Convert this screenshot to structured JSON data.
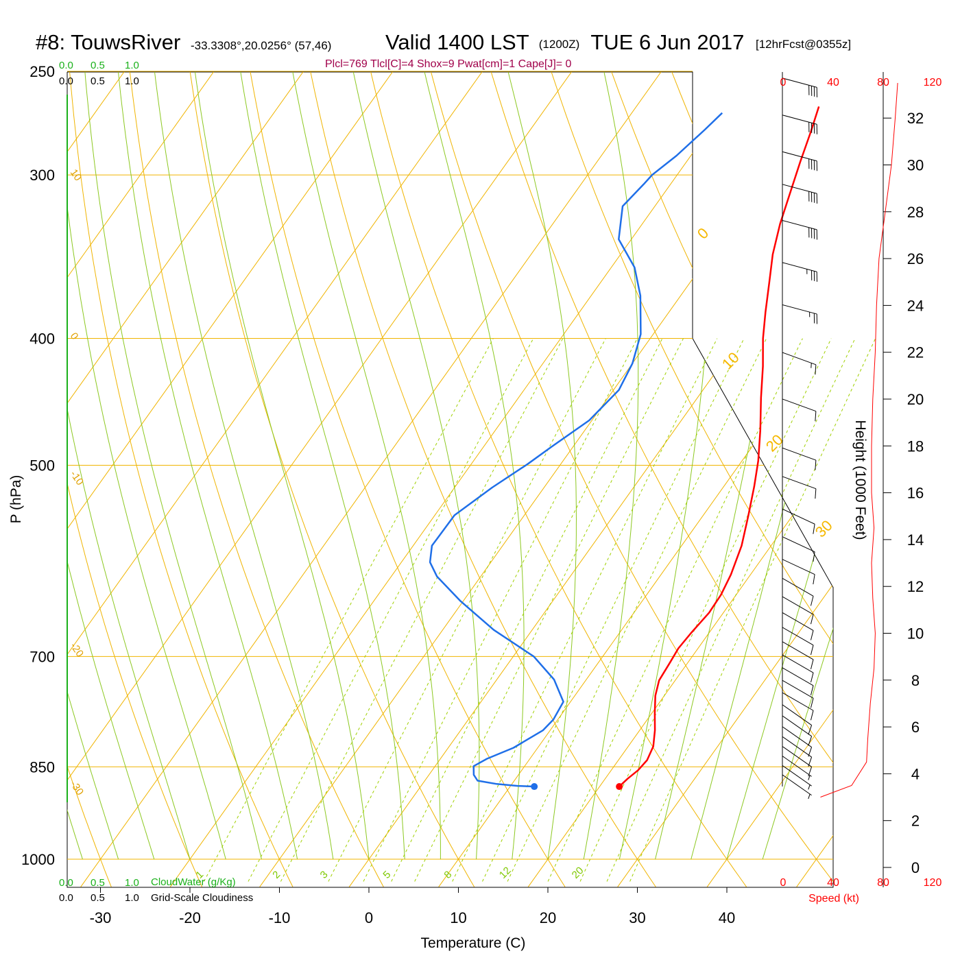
{
  "header": {
    "station": "#8: TouwsRiver",
    "coords": "-33.3308°,20.0256° (57,46)",
    "valid": "Valid 1400 LST",
    "zulu": "(1200Z)",
    "date": "TUE 6 Jun 2017",
    "forecast": "[12hrFcst@0355z]"
  },
  "stats_line": "Plcl=769 Tlcl[C]=4 Shox=9 Pwat[cm]=1 Cape[J]= 0",
  "scale_top_green": [
    "0.0",
    "0.5",
    "1.0"
  ],
  "scale_top_black": [
    "0.0",
    "0.5",
    "1.0"
  ],
  "scale_bottom_green": [
    "0.0",
    "0.5",
    "1.0"
  ],
  "scale_bottom_black": [
    "0.0",
    "0.5",
    "1.0"
  ],
  "cloudwater_label": "CloudWater (g/Kg)",
  "cloudiness_label": "Grid-Scale Cloudiness",
  "speed_ticks_top": [
    "0",
    "40",
    "80",
    "120"
  ],
  "speed_ticks_bottom": [
    "0",
    "40",
    "80",
    "120"
  ],
  "speed_label": "Speed (kt)",
  "colors": {
    "temperature": "#ff0000",
    "dewpoint": "#1f6fe8",
    "isotherm": "#f0b400",
    "dry_adiabat": "#f0b400",
    "moist_adiabat": "#8cc820",
    "mixing_ratio": "#a0d000",
    "speed_profile": "#ff0000",
    "cloud_axis": "#19b019"
  },
  "chart_data": {
    "type": "line",
    "subtype": "skew-t log-p sounding",
    "xlabel": "Temperature (C)",
    "ylabel": "P (hPa)",
    "y2label": "Height (1000 Feet)",
    "x_ticks": [
      -30,
      -20,
      -10,
      0,
      10,
      20,
      30,
      40
    ],
    "pressure_ticks": [
      250,
      300,
      400,
      500,
      700,
      850,
      1000
    ],
    "height_ticks": [
      0,
      2,
      4,
      6,
      8,
      10,
      12,
      14,
      16,
      18,
      20,
      22,
      24,
      26,
      28,
      30,
      32
    ],
    "isotherm_labels": [
      {
        "text": "0",
        "t": 0
      },
      {
        "text": "10",
        "t": 10
      },
      {
        "text": "20",
        "t": 20
      },
      {
        "text": "30",
        "t": 30
      }
    ],
    "dry_adiabat_labels": [
      {
        "text": "10",
        "p": 300
      },
      {
        "text": "0",
        "p": 400
      },
      {
        "text": "-10",
        "p": 510
      },
      {
        "text": "-20",
        "p": 690
      },
      {
        "text": "-30",
        "p": 880
      }
    ],
    "mixing_ratio_labels": [
      "1",
      "2",
      "3",
      "5",
      "8",
      "12",
      "20"
    ],
    "series": [
      {
        "name": "Temperature",
        "points": [
          [
            22.2,
            880
          ],
          [
            22.5,
            868
          ],
          [
            23.0,
            855
          ],
          [
            23.2,
            840
          ],
          [
            22.8,
            820
          ],
          [
            21.7,
            797
          ],
          [
            20.3,
            773
          ],
          [
            19.0,
            750
          ],
          [
            18.2,
            730
          ],
          [
            18.0,
            708
          ],
          [
            17.8,
            690
          ],
          [
            18.0,
            672
          ],
          [
            18.4,
            648
          ],
          [
            18.3,
            628
          ],
          [
            17.8,
            606
          ],
          [
            16.7,
            576
          ],
          [
            15.1,
            547
          ],
          [
            13.4,
            519
          ],
          [
            11.8,
            496
          ],
          [
            9.6,
            470
          ],
          [
            7.1,
            444
          ],
          [
            4.8,
            420
          ],
          [
            2.6,
            400
          ],
          [
            0.8,
            382
          ],
          [
            -1.2,
            362
          ],
          [
            -3.0,
            345
          ],
          [
            -4.6,
            327
          ],
          [
            -6.0,
            309
          ],
          [
            -7.3,
            293
          ],
          [
            -8.5,
            278
          ],
          [
            -9.6,
            266
          ]
        ],
        "surface_point": [
          22.2,
          880
        ]
      },
      {
        "name": "Dewpoint",
        "points": [
          [
            12.7,
            880
          ],
          [
            10.8,
            879
          ],
          [
            8.3,
            876
          ],
          [
            5.9,
            871
          ],
          [
            5.0,
            862
          ],
          [
            4.3,
            849
          ],
          [
            5.2,
            838
          ],
          [
            7.3,
            822
          ],
          [
            9.2,
            797
          ],
          [
            9.5,
            782
          ],
          [
            9.2,
            758
          ],
          [
            6.4,
            729
          ],
          [
            2.3,
            700
          ],
          [
            -4.3,
            668
          ],
          [
            -10.3,
            635
          ],
          [
            -14.9,
            608
          ],
          [
            -16.8,
            593
          ],
          [
            -17.9,
            576
          ],
          [
            -17.8,
            546
          ],
          [
            -15.8,
            520
          ],
          [
            -13.7,
            499
          ],
          [
            -12.4,
            484
          ],
          [
            -10.3,
            462
          ],
          [
            -9.4,
            438
          ],
          [
            -10.0,
            418
          ],
          [
            -11.4,
            397
          ],
          [
            -14.5,
            371
          ],
          [
            -17.4,
            353
          ],
          [
            -21.4,
            336
          ],
          [
            -23.6,
            317
          ],
          [
            -23.0,
            305
          ],
          [
            -22.8,
            300
          ],
          [
            -21.6,
            290
          ],
          [
            -20.5,
            277
          ],
          [
            -19.9,
            269
          ]
        ],
        "surface_point": [
          12.7,
          880
        ]
      }
    ],
    "wind_barbs": [
      {
        "p": 253,
        "dir": 285,
        "speed": 40
      },
      {
        "p": 270,
        "dir": 285,
        "speed": 40
      },
      {
        "p": 288,
        "dir": 285,
        "speed": 40
      },
      {
        "p": 305,
        "dir": 285,
        "speed": 40
      },
      {
        "p": 325,
        "dir": 285,
        "speed": 40
      },
      {
        "p": 350,
        "dir": 285,
        "speed": 35
      },
      {
        "p": 377,
        "dir": 285,
        "speed": 25
      },
      {
        "p": 410,
        "dir": 290,
        "speed": 15
      },
      {
        "p": 445,
        "dir": 290,
        "speed": 10
      },
      {
        "p": 485,
        "dir": 290,
        "speed": 10
      },
      {
        "p": 510,
        "dir": 290,
        "speed": 10
      },
      {
        "p": 540,
        "dir": 295,
        "speed": 10
      },
      {
        "p": 567,
        "dir": 295,
        "speed": 10
      },
      {
        "p": 590,
        "dir": 295,
        "speed": 10
      },
      {
        "p": 610,
        "dir": 300,
        "speed": 10
      },
      {
        "p": 630,
        "dir": 300,
        "speed": 10
      },
      {
        "p": 648,
        "dir": 300,
        "speed": 10
      },
      {
        "p": 665,
        "dir": 300,
        "speed": 10
      },
      {
        "p": 682,
        "dir": 300,
        "speed": 10
      },
      {
        "p": 698,
        "dir": 300,
        "speed": 10
      },
      {
        "p": 714,
        "dir": 300,
        "speed": 10
      },
      {
        "p": 730,
        "dir": 300,
        "speed": 10
      },
      {
        "p": 746,
        "dir": 300,
        "speed": 10
      },
      {
        "p": 762,
        "dir": 305,
        "speed": 10
      },
      {
        "p": 777,
        "dir": 305,
        "speed": 10
      },
      {
        "p": 792,
        "dir": 305,
        "speed": 10
      },
      {
        "p": 806,
        "dir": 305,
        "speed": 10
      },
      {
        "p": 820,
        "dir": 305,
        "speed": 10
      },
      {
        "p": 834,
        "dir": 305,
        "speed": 5
      },
      {
        "p": 848,
        "dir": 305,
        "speed": 5
      },
      {
        "p": 862,
        "dir": 305,
        "speed": 5
      }
    ],
    "speed_profile": {
      "xlim": [
        0,
        120
      ],
      "points": [
        [
          30,
          3.0
        ],
        [
          55,
          3.5
        ],
        [
          67,
          4.5
        ],
        [
          68,
          5.5
        ],
        [
          70,
          7.0
        ],
        [
          73,
          8.5
        ],
        [
          74,
          10.0
        ],
        [
          72,
          11.5
        ],
        [
          71,
          13.0
        ],
        [
          73,
          14.5
        ],
        [
          71,
          16.0
        ],
        [
          71,
          18.0
        ],
        [
          72,
          20.0
        ],
        [
          74,
          22.0
        ],
        [
          75,
          24.0
        ],
        [
          77,
          26.0
        ],
        [
          82,
          28.0
        ],
        [
          87,
          30.0
        ],
        [
          90,
          32.0
        ],
        [
          92,
          33.5
        ]
      ]
    }
  }
}
